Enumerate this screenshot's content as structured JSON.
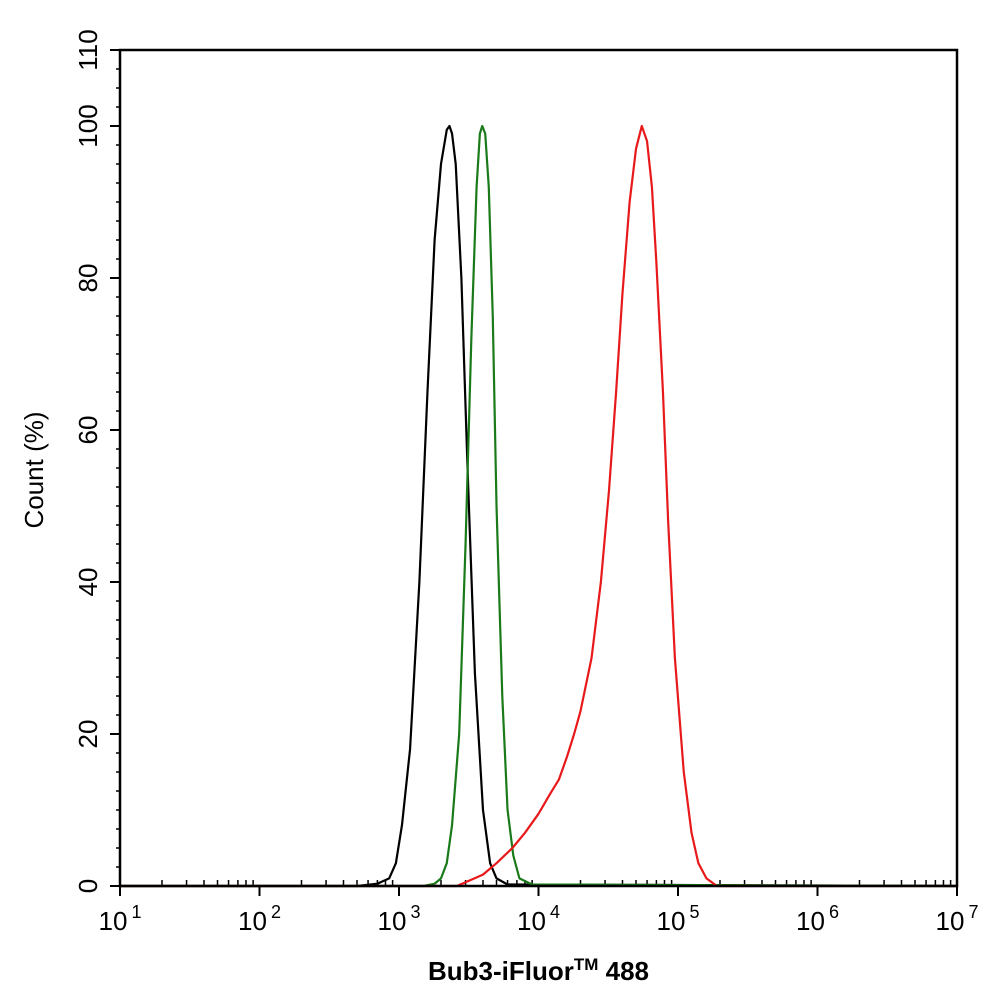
{
  "chart_data": {
    "type": "line",
    "xlabel": "Bub3-iFluor",
    "xlabel_sup": "TM",
    "xlabel_suffix": " 488",
    "ylabel": "Count  (%)",
    "x_scale": "log",
    "xlim": [
      10,
      10000000
    ],
    "ylim": [
      0,
      110
    ],
    "grid": false,
    "legend": "none",
    "x_ticks": [
      {
        "value": 10,
        "base": "10",
        "exp": "1"
      },
      {
        "value": 100,
        "base": "10",
        "exp": "2"
      },
      {
        "value": 1000,
        "base": "10",
        "exp": "3"
      },
      {
        "value": 10000,
        "base": "10",
        "exp": "4"
      },
      {
        "value": 100000,
        "base": "10",
        "exp": "5"
      },
      {
        "value": 1000000,
        "base": "10",
        "exp": "6"
      },
      {
        "value": 10000000,
        "base": "10",
        "exp": "7"
      }
    ],
    "y_ticks": [
      0,
      20,
      40,
      60,
      80,
      100,
      110
    ],
    "y_tick_labels": [
      "0",
      "20",
      "40",
      "60",
      "80",
      "100",
      "110"
    ],
    "series": [
      {
        "color": "#000000",
        "points": [
          [
            10,
            0
          ],
          [
            500,
            0
          ],
          [
            700,
            0.3
          ],
          [
            850,
            1
          ],
          [
            950,
            3
          ],
          [
            1050,
            8
          ],
          [
            1200,
            18
          ],
          [
            1400,
            40
          ],
          [
            1600,
            65
          ],
          [
            1800,
            85
          ],
          [
            2000,
            95
          ],
          [
            2200,
            99.5
          ],
          [
            2300,
            100
          ],
          [
            2400,
            99
          ],
          [
            2550,
            95
          ],
          [
            2800,
            80
          ],
          [
            3100,
            55
          ],
          [
            3500,
            28
          ],
          [
            4000,
            10
          ],
          [
            4500,
            3
          ],
          [
            5000,
            1
          ],
          [
            6000,
            0.2
          ],
          [
            10000000,
            0
          ]
        ]
      },
      {
        "color": "#1a7a1a",
        "points": [
          [
            10,
            0
          ],
          [
            1500,
            0
          ],
          [
            1800,
            0.3
          ],
          [
            2000,
            1
          ],
          [
            2200,
            3
          ],
          [
            2400,
            8
          ],
          [
            2700,
            20
          ],
          [
            3000,
            45
          ],
          [
            3300,
            72
          ],
          [
            3600,
            92
          ],
          [
            3800,
            99
          ],
          [
            3950,
            100
          ],
          [
            4150,
            99
          ],
          [
            4400,
            92
          ],
          [
            4700,
            75
          ],
          [
            5000,
            50
          ],
          [
            5500,
            25
          ],
          [
            6000,
            10
          ],
          [
            6600,
            4
          ],
          [
            7300,
            1
          ],
          [
            9000,
            0.2
          ],
          [
            10000000,
            0
          ]
        ]
      },
      {
        "color": "#e8191a",
        "points": [
          [
            10,
            0
          ],
          [
            2600,
            0
          ],
          [
            3000,
            0.5
          ],
          [
            4000,
            1.5
          ],
          [
            5000,
            3
          ],
          [
            6500,
            5
          ],
          [
            8000,
            7
          ],
          [
            10000,
            9.5
          ],
          [
            12000,
            12
          ],
          [
            14000,
            14
          ],
          [
            16000,
            17
          ],
          [
            18000,
            20
          ],
          [
            20000,
            23
          ],
          [
            24000,
            30
          ],
          [
            28000,
            40
          ],
          [
            32000,
            52
          ],
          [
            36000,
            65
          ],
          [
            40000,
            78
          ],
          [
            45000,
            90
          ],
          [
            50000,
            97
          ],
          [
            55000,
            100
          ],
          [
            60000,
            98
          ],
          [
            65000,
            92
          ],
          [
            70000,
            82
          ],
          [
            78000,
            65
          ],
          [
            85000,
            48
          ],
          [
            95000,
            30
          ],
          [
            110000,
            15
          ],
          [
            125000,
            7
          ],
          [
            140000,
            3
          ],
          [
            160000,
            1
          ],
          [
            190000,
            0
          ],
          [
            10000000,
            0
          ]
        ]
      }
    ]
  }
}
